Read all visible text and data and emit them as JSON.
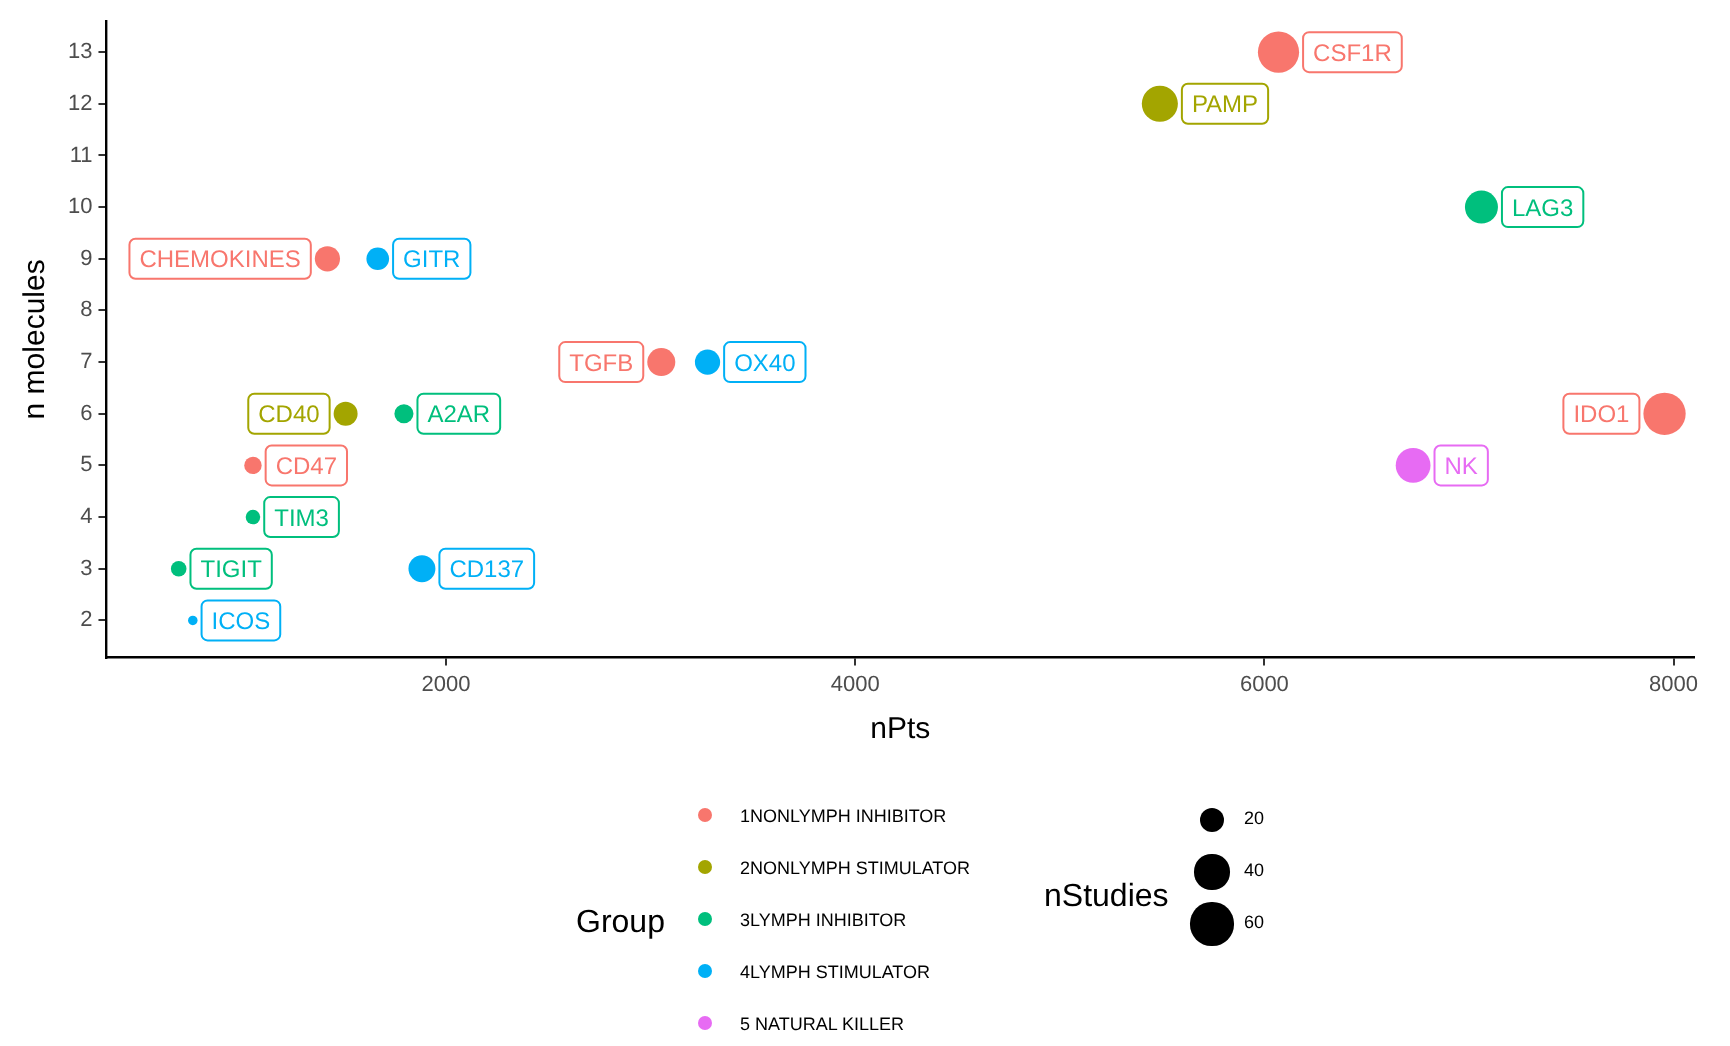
{
  "chart_data": {
    "type": "bubble",
    "xlabel": "nPts",
    "ylabel": "n molecules",
    "legend_title": "Group",
    "legend": "bottom",
    "grid": false,
    "xlim": [
      340,
      8100
    ],
    "ylim": [
      1.28,
      13.6
    ],
    "xticks": [
      2000,
      4000,
      6000,
      8000
    ],
    "yticks": [
      2,
      3,
      4,
      5,
      6,
      7,
      8,
      9,
      10,
      11,
      12,
      13
    ],
    "size_legend": [
      20,
      40,
      60
    ],
    "series": [
      {
        "name": "1NONLYMPH INHIBITOR",
        "color": "#f8766d",
        "x": [
          6069,
          7956,
          1420,
          3052,
          1056
        ],
        "values": [
          13,
          6,
          9,
          7,
          5
        ],
        "sizes": [
          56,
          59,
          21,
          26,
          10
        ]
      },
      {
        "name": "2NONLYMPH STIMULATOR",
        "color": "#a3a500",
        "x": [
          5489,
          1509
        ],
        "values": [
          12,
          6
        ],
        "sizes": [
          43,
          19
        ]
      },
      {
        "name": "3LYMPH INHIBITOR",
        "color": "#00bf7d",
        "x": [
          7061,
          1794,
          1056,
          693
        ],
        "values": [
          10,
          6,
          4,
          3
        ],
        "sizes": [
          36,
          12,
          7,
          8
        ]
      },
      {
        "name": "4LYMPH STIMULATOR",
        "color": "#00b0f6",
        "x": [
          1666,
          3278,
          1882,
          762
        ],
        "values": [
          9,
          7,
          3,
          2
        ],
        "sizes": [
          17,
          21,
          24,
          3
        ]
      },
      {
        "name": "5 NATURAL KILLER",
        "color": "#e76bf3",
        "x": [
          6727
        ],
        "values": [
          5
        ],
        "sizes": [
          40
        ]
      }
    ],
    "annotations": [
      "nStudies",
      {
        "text": "CSF1R",
        "x": 6069,
        "y": 13
      },
      {
        "text": "PAMP",
        "x": 5489,
        "y": 12
      },
      {
        "text": "LAG3",
        "x": 7061,
        "y": 10
      },
      {
        "text": "IDO1",
        "x": 7956,
        "y": 6
      },
      {
        "text": "NK",
        "x": 6727,
        "y": 5
      },
      {
        "text": "CHEMOKINES",
        "x": 1420,
        "y": 9
      },
      {
        "text": "GITR",
        "x": 1666,
        "y": 9
      },
      {
        "text": "TGFB",
        "x": 3052,
        "y": 7
      },
      {
        "text": "OX40",
        "x": 3278,
        "y": 7
      },
      {
        "text": "CD40",
        "x": 1509,
        "y": 6
      },
      {
        "text": "A2AR",
        "x": 1794,
        "y": 6
      },
      {
        "text": "CD47",
        "x": 1056,
        "y": 5
      },
      {
        "text": "TIM3",
        "x": 1056,
        "y": 4
      },
      {
        "text": "TIGIT",
        "x": 693,
        "y": 3
      },
      {
        "text": "CD137",
        "x": 1882,
        "y": 3
      },
      {
        "text": "ICOS",
        "x": 762,
        "y": 2
      }
    ]
  }
}
